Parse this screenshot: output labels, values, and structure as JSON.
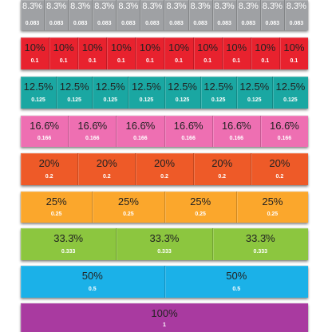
{
  "strips": [
    {
      "id": "twelfths",
      "percent": "8.3̇%",
      "decimal": "0.083",
      "count": 12,
      "color": "#9fa1a4",
      "pctColor": "#ffffff",
      "decColor": "#ffffff"
    },
    {
      "id": "tenths",
      "percent": "10%",
      "decimal": "0.1",
      "count": 10,
      "color": "#e8222e",
      "pctColor": "#222222",
      "decColor": "#ffffff"
    },
    {
      "id": "eighths",
      "percent": "12.5%",
      "decimal": "0.125",
      "count": 8,
      "color": "#1aa7a2",
      "pctColor": "#222222",
      "decColor": "#ffffff"
    },
    {
      "id": "sixths",
      "percent": "16.6̇%",
      "decimal": "0.166",
      "count": 6,
      "color": "#ee6fb2",
      "pctColor": "#222222",
      "decColor": "#ffffff"
    },
    {
      "id": "fifths",
      "percent": "20%",
      "decimal": "0.2",
      "count": 5,
      "color": "#ee5a28",
      "pctColor": "#222222",
      "decColor": "#ffffff"
    },
    {
      "id": "quarters",
      "percent": "25%",
      "decimal": "0.25",
      "count": 4,
      "color": "#fba72c",
      "pctColor": "#222222",
      "decColor": "#ffffff"
    },
    {
      "id": "thirds",
      "percent": "33.3̇%",
      "decimal": "0.333",
      "count": 3,
      "color": "#8cc63f",
      "pctColor": "#222222",
      "decColor": "#ffffff"
    },
    {
      "id": "halves",
      "percent": "50%",
      "decimal": "0.5",
      "count": 2,
      "color": "#1bb1e8",
      "pctColor": "#222222",
      "decColor": "#ffffff"
    },
    {
      "id": "whole",
      "percent": "100%",
      "decimal": "1",
      "count": 1,
      "color": "#a93aa0",
      "pctColor": "#222222",
      "decColor": "#ffffff"
    }
  ]
}
